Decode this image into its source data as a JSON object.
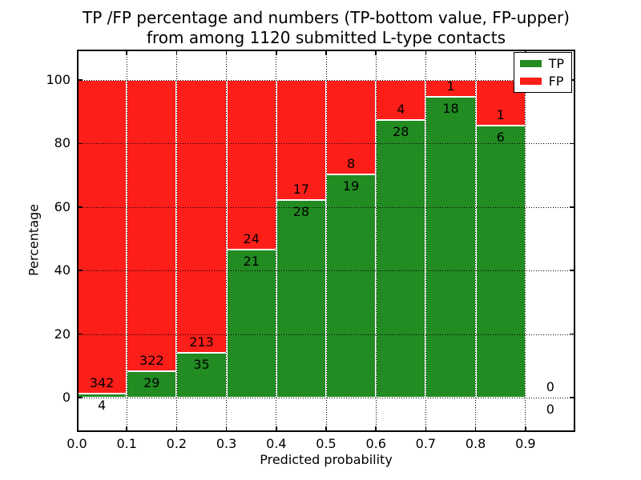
{
  "figure": {
    "title_line1": "TP /FP percentage and numbers (TP-bottom value, FP-upper)",
    "title_line2": "from among 1120 submitted L-type contacts",
    "xlabel": "Predicted probability",
    "ylabel": "Percentage",
    "background_color": "#ffffff"
  },
  "legend": {
    "position": "upper-right",
    "entries": [
      {
        "label": "TP",
        "color": "#228b22"
      },
      {
        "label": "FP",
        "color": "#fc1e19"
      }
    ]
  },
  "chart_data": {
    "type": "bar",
    "stacked": true,
    "normalized_to_percent": true,
    "title": "TP /FP percentage and numbers (TP-bottom value, FP-upper) from among 1120 submitted L-type contacts",
    "total_submitted": 1120,
    "xlabel": "Predicted probability",
    "ylabel": "Percentage",
    "xlim": [
      0.0,
      1.0
    ],
    "ylim_display": [
      -10.8,
      109.6
    ],
    "grid": "dotted",
    "grid_on_top": true,
    "bar_edge_color": "#ffffff",
    "colors": {
      "tp": "#228b22",
      "fp": "#fc1e19"
    },
    "xtick_labels": [
      "0.0",
      "0.1",
      "0.2",
      "0.3",
      "0.4",
      "0.5",
      "0.6",
      "0.7",
      "0.8",
      "0.9"
    ],
    "ytick_values": [
      0,
      20,
      40,
      60,
      80,
      100
    ],
    "ytick_labels": [
      "0",
      "20",
      "40",
      "60",
      "80",
      "100"
    ],
    "annotation_note": "FP count printed above green-bar top, TP count printed below it",
    "bins": [
      {
        "range": "0.0-0.1",
        "x_start": 0.0,
        "x_end": 0.1,
        "tp": 4,
        "fp": 342,
        "tp_pct": 1.16,
        "empty": false
      },
      {
        "range": "0.1-0.2",
        "x_start": 0.1,
        "x_end": 0.2,
        "tp": 29,
        "fp": 322,
        "tp_pct": 8.26,
        "empty": false
      },
      {
        "range": "0.2-0.3",
        "x_start": 0.2,
        "x_end": 0.3,
        "tp": 35,
        "fp": 213,
        "tp_pct": 14.11,
        "empty": false
      },
      {
        "range": "0.3-0.4",
        "x_start": 0.3,
        "x_end": 0.4,
        "tp": 21,
        "fp": 24,
        "tp_pct": 46.67,
        "empty": false
      },
      {
        "range": "0.4-0.5",
        "x_start": 0.4,
        "x_end": 0.5,
        "tp": 28,
        "fp": 17,
        "tp_pct": 62.22,
        "empty": false
      },
      {
        "range": "0.5-0.6",
        "x_start": 0.5,
        "x_end": 0.6,
        "tp": 19,
        "fp": 8,
        "tp_pct": 70.37,
        "empty": false
      },
      {
        "range": "0.6-0.7",
        "x_start": 0.6,
        "x_end": 0.7,
        "tp": 28,
        "fp": 4,
        "tp_pct": 87.5,
        "empty": false
      },
      {
        "range": "0.7-0.8",
        "x_start": 0.7,
        "x_end": 0.8,
        "tp": 18,
        "fp": 1,
        "tp_pct": 94.74,
        "empty": false
      },
      {
        "range": "0.8-0.9",
        "x_start": 0.8,
        "x_end": 0.9,
        "tp": 6,
        "fp": 1,
        "tp_pct": 85.71,
        "empty": false
      },
      {
        "range": "0.9-1.0",
        "x_start": 0.9,
        "x_end": 1.0,
        "tp": 0,
        "fp": 0,
        "tp_pct": 0,
        "empty": true
      }
    ]
  }
}
